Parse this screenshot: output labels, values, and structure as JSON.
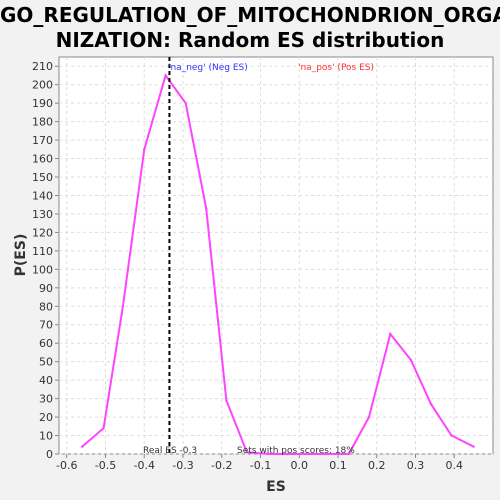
{
  "chart_data": {
    "type": "line",
    "title_line1": "GO_REGULATION_OF_MITOCHONDRION_ORGA",
    "title_line2": "NIZATION: Random ES distribution",
    "xlabel": "ES",
    "ylabel": "P(ES)",
    "xlim": [
      -0.62,
      0.5
    ],
    "ylim": [
      0,
      215
    ],
    "x_ticks": [
      -0.6,
      -0.5,
      -0.4,
      -0.3,
      -0.2,
      -0.1,
      0.0,
      0.1,
      0.2,
      0.3,
      0.4
    ],
    "x_tick_labels": [
      "-0.6",
      "-0.5",
      "-0.4",
      "-0.3",
      "-0.2",
      "-0.1",
      "0.0",
      "0.1",
      "0.2",
      "0.3",
      "0.4"
    ],
    "y_ticks": [
      0,
      10,
      20,
      30,
      40,
      50,
      60,
      70,
      80,
      90,
      100,
      110,
      120,
      130,
      140,
      150,
      160,
      170,
      180,
      190,
      200,
      210
    ],
    "y_tick_labels": [
      "0",
      "10",
      "20",
      "30",
      "40",
      "50",
      "60",
      "70",
      "80",
      "90",
      "100",
      "110",
      "120",
      "130",
      "140",
      "150",
      "160",
      "170",
      "180",
      "190",
      "200",
      "210"
    ],
    "grid": true,
    "series": [
      {
        "color": "#ff44ff",
        "x": [
          -0.56,
          -0.505,
          -0.455,
          -0.4,
          -0.345,
          -0.293,
          -0.24,
          -0.188,
          -0.135,
          -0.08,
          -0.03,
          0.02,
          0.07,
          0.128,
          0.18,
          0.235,
          0.288,
          0.34,
          0.393,
          0.45
        ],
        "y": [
          4,
          14,
          80,
          165,
          205,
          190,
          133,
          29,
          1,
          0,
          0,
          0,
          0,
          0,
          20,
          65,
          51,
          27,
          10,
          4
        ]
      }
    ],
    "real_es": -0.335,
    "real_es_color": "#000000",
    "legend": [
      {
        "label": "'na_neg' (Neg ES)",
        "color": "#3333ff"
      },
      {
        "label": "'na_pos' (Pos ES)",
        "color": "#ff3333"
      }
    ],
    "annotations": {
      "real_es_text": "Real ES -0.3",
      "pos_scores_text": "Sets with pos scores: 18%"
    }
  }
}
